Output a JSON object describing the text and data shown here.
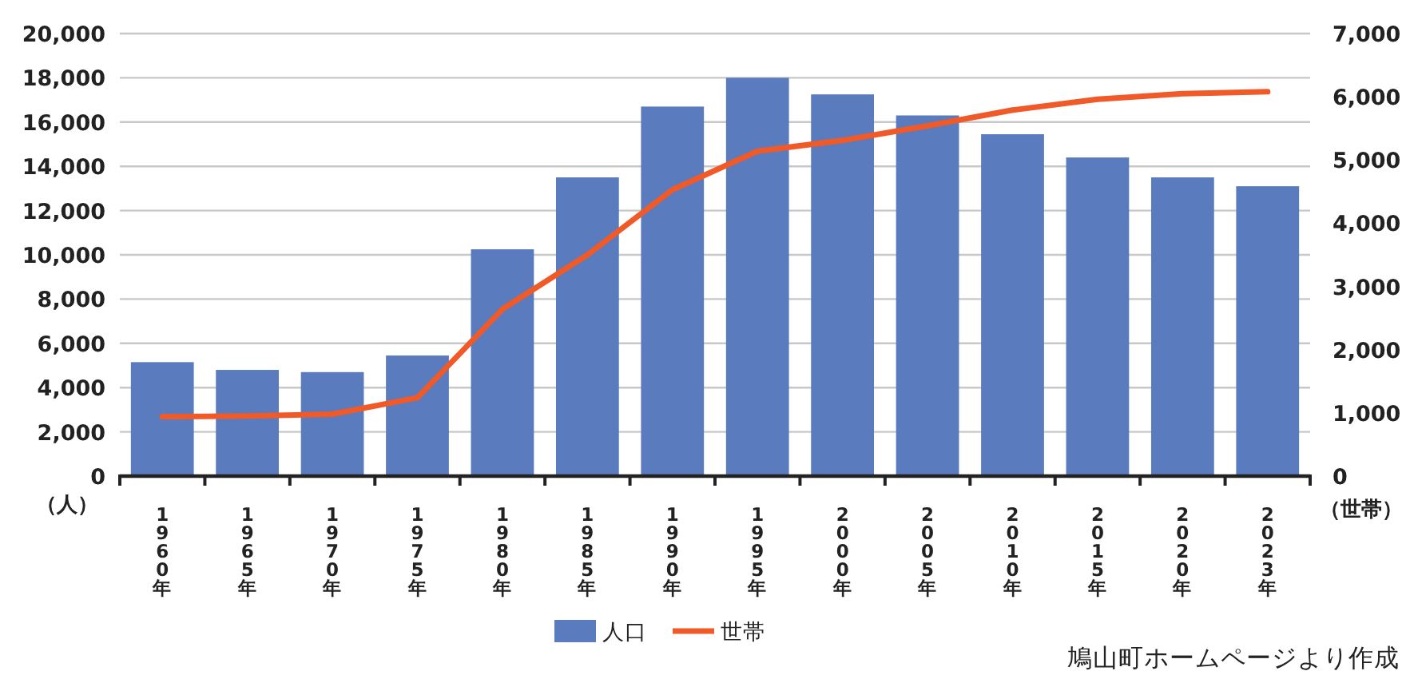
{
  "chart_data": {
    "type": "bar",
    "categories": [
      "1960年",
      "1965年",
      "1970年",
      "1975年",
      "1980年",
      "1985年",
      "1990年",
      "1995年",
      "2000年",
      "2005年",
      "2010年",
      "2015年",
      "2020年",
      "2023年"
    ],
    "series": [
      {
        "name": "人口",
        "color": "#5a7bbd",
        "values": [
          5150,
          4800,
          4700,
          5450,
          10250,
          13500,
          16700,
          18000,
          17250,
          16300,
          15450,
          14400,
          13500,
          13100
        ]
      },
      {
        "name": "世帯",
        "type": "line",
        "axis": "y2",
        "color": "#f05a28",
        "values": [
          940,
          950,
          980,
          1240,
          2640,
          3500,
          4530,
          5140,
          5310,
          5540,
          5790,
          5960,
          6050,
          6080
        ]
      }
    ],
    "ylabel": "（人）",
    "y2label": "（世帯）",
    "ylim": [
      0,
      20000
    ],
    "yticks": [
      0,
      {
        "value": 2000,
        "label": "2,000"
      },
      {
        "value": 4000,
        "label": "4,000"
      },
      {
        "value": 6000,
        "label": "6,000"
      },
      {
        "value": 8000,
        "label": "8,000"
      },
      {
        "value": 10000,
        "label": "10,000"
      },
      {
        "value": 12000,
        "label": "12,000"
      },
      {
        "value": 14000,
        "label": "14,000"
      },
      {
        "value": 16000,
        "label": "16,000"
      },
      {
        "value": 18000,
        "label": "18,000"
      },
      {
        "value": 20000,
        "label": "20,000"
      }
    ],
    "y2lim": [
      0,
      7000
    ],
    "y2ticks": [
      0,
      {
        "value": 1000,
        "label": "1,000"
      },
      {
        "value": 2000,
        "label": "2,000"
      },
      {
        "value": 3000,
        "label": "3,000"
      },
      {
        "value": 4000,
        "label": "4,000"
      },
      {
        "value": 5000,
        "label": "5,000"
      },
      {
        "value": 6000,
        "label": "6,000"
      },
      {
        "value": 7000,
        "label": "7,000"
      }
    ],
    "grid": "y",
    "legend": "bottom",
    "annotations": [
      "鳩山町ホームページより作成"
    ]
  }
}
